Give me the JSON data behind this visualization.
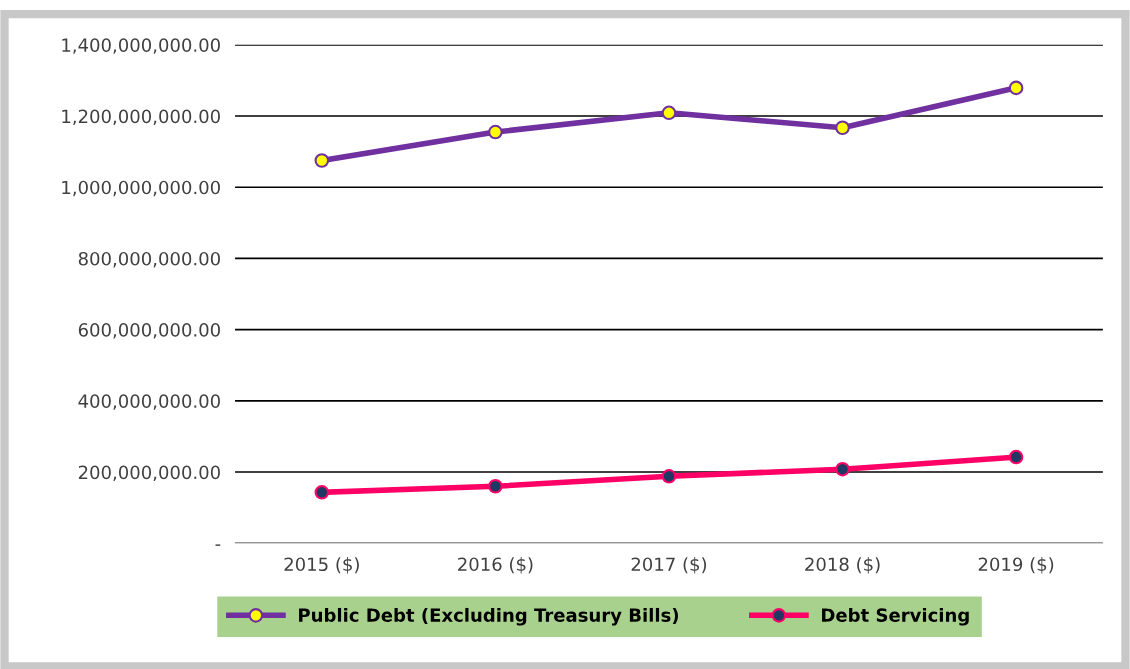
{
  "chart_data": {
    "type": "line",
    "categories": [
      "2015 ($)",
      "2016 ($)",
      "2017 ($)",
      "2018 ($)",
      "2019 ($)"
    ],
    "series": [
      {
        "name": "Public Debt (Excluding Treasury Bills)",
        "color": "#7030a0",
        "values": [
          1075000000,
          1155000000,
          1209000000,
          1167000000,
          1279000000
        ]
      },
      {
        "name": "Debt Servicing",
        "color": "#ff0066",
        "values": [
          143000000,
          160000000,
          188000000,
          208000000,
          242000000
        ]
      }
    ],
    "ylim": [
      0,
      1400000000
    ],
    "yticks": [
      {
        "value": 0,
        "label": "-"
      },
      {
        "value": 200000000,
        "label": "200,000,000.00"
      },
      {
        "value": 400000000,
        "label": "400,000,000.00"
      },
      {
        "value": 600000000,
        "label": "600,000,000.00"
      },
      {
        "value": 800000000,
        "label": "800,000,000.00"
      },
      {
        "value": 1000000000,
        "label": "1,000,000,000.00"
      },
      {
        "value": 1200000000,
        "label": "1,200,000,000.00"
      },
      {
        "value": 1400000000,
        "label": "1,400,000,000.00"
      }
    ],
    "grid": "y",
    "legend": "bottom",
    "marker": "circle",
    "line_style": "solid"
  }
}
